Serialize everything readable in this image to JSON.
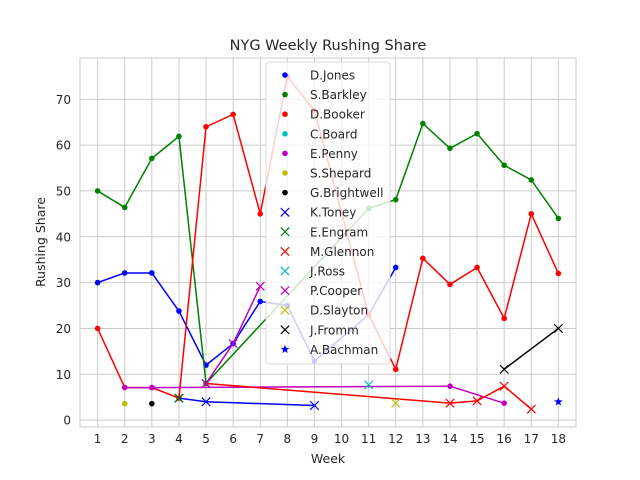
{
  "chart_data": {
    "type": "line",
    "title": "NYG Weekly Rushing Share",
    "xlabel": "Week",
    "ylabel": "Rushing Share",
    "xlim": [
      0.35,
      18.65
    ],
    "ylim": [
      -1.5,
      79
    ],
    "xticks": [
      1,
      2,
      3,
      4,
      5,
      6,
      7,
      8,
      9,
      10,
      11,
      12,
      13,
      14,
      15,
      16,
      17,
      18
    ],
    "yticks": [
      0,
      10,
      20,
      30,
      40,
      50,
      60,
      70
    ],
    "grid": true,
    "legend_position": "top-center",
    "series": [
      {
        "name": "D.Jones",
        "color": "#0000ff",
        "marker": "dot",
        "x": [
          1,
          2,
          3,
          4,
          5,
          6,
          7,
          8,
          9,
          11,
          12
        ],
        "y": [
          30,
          32.1,
          32.1,
          23.8,
          12,
          16.7,
          25.9,
          25,
          12.9,
          23,
          33.3
        ]
      },
      {
        "name": "S.Barkley",
        "color": "#008000",
        "marker": "dot",
        "x": [
          1,
          2,
          3,
          4,
          5,
          11,
          12,
          13,
          14,
          15,
          16,
          17,
          18
        ],
        "y": [
          50,
          46.4,
          57.1,
          61.9,
          8,
          46.2,
          48.1,
          64.7,
          59.3,
          62.5,
          55.6,
          52.4,
          44
        ]
      },
      {
        "name": "D.Booker",
        "color": "#ff0000",
        "marker": "dot",
        "x": [
          1,
          2,
          3,
          4,
          5,
          6,
          7,
          8,
          9,
          11,
          12,
          13,
          14,
          15,
          16,
          17,
          18
        ],
        "y": [
          20,
          7.1,
          7.1,
          4.8,
          64,
          66.7,
          45,
          75,
          67.5,
          23,
          11.1,
          35.3,
          29.6,
          33.3,
          22.2,
          45,
          32
        ]
      },
      {
        "name": "C.Board",
        "color": "#00bfbf",
        "marker": "dot",
        "x": [],
        "y": []
      },
      {
        "name": "E.Penny",
        "color": "#bf00bf",
        "marker": "dot",
        "x": [
          2,
          3,
          14,
          16
        ],
        "y": [
          7.1,
          7.1,
          7.4,
          3.7
        ]
      },
      {
        "name": "S.Shepard",
        "color": "#bfbf00",
        "marker": "dot",
        "x": [
          2
        ],
        "y": [
          3.6
        ]
      },
      {
        "name": "G.Brightwell",
        "color": "#000000",
        "marker": "dot",
        "x": [
          3
        ],
        "y": [
          3.6
        ]
      },
      {
        "name": "K.Toney",
        "color": "#0000ff",
        "marker": "x",
        "x": [
          4,
          5,
          9
        ],
        "y": [
          4.8,
          4,
          3.2
        ]
      },
      {
        "name": "E.Engram",
        "color": "#008000",
        "marker": "x",
        "x": [
          4
        ],
        "y": [
          4.8
        ]
      },
      {
        "name": "M.Glennon",
        "color": "#ff0000",
        "marker": "x",
        "x": [
          5,
          14,
          15,
          16,
          17
        ],
        "y": [
          8,
          3.7,
          4.2,
          7.4,
          2.4
        ]
      },
      {
        "name": "J.Ross",
        "color": "#00bfbf",
        "marker": "x",
        "x": [
          11
        ],
        "y": [
          7.7
        ]
      },
      {
        "name": "P.Cooper",
        "color": "#bf00bf",
        "marker": "x",
        "x": [
          5,
          6,
          7
        ],
        "y": [
          8,
          16.7,
          29.2
        ]
      },
      {
        "name": "D.Slayton",
        "color": "#bfbf00",
        "marker": "x",
        "x": [
          12
        ],
        "y": [
          3.7
        ]
      },
      {
        "name": "J.Fromm",
        "color": "#000000",
        "marker": "x",
        "x": [
          16,
          18
        ],
        "y": [
          11.1,
          20
        ]
      },
      {
        "name": "A.Bachman",
        "color": "#0000ff",
        "marker": "star",
        "x": [
          18
        ],
        "y": [
          4
        ]
      }
    ]
  }
}
